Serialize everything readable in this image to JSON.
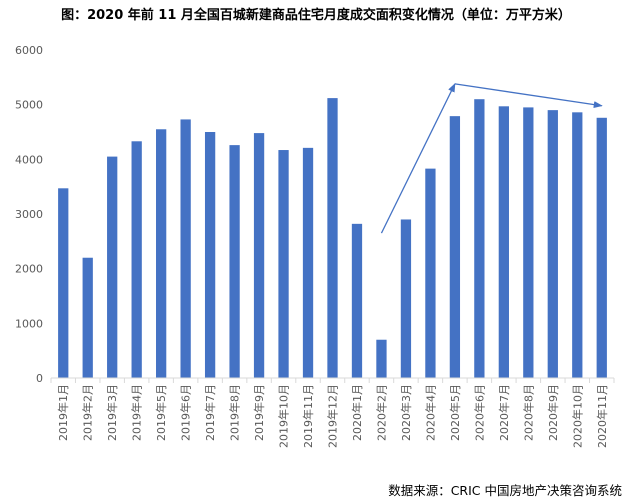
{
  "title": "图：2020 年前 11 月全国百城新建商品住宅月度成交面积变化情况（单位：万平方米）",
  "source": "数据来源：CRIC 中国房地产决策咨询系统",
  "colors": {
    "bar": "#4472C4",
    "axis": "#D9D9D9",
    "tick_text": "#595959",
    "annotation": "#4472C4"
  },
  "chart_data": {
    "type": "bar",
    "title": "图：2020 年前 11 月全国百城新建商品住宅月度成交面积变化情况（单位：万平方米）",
    "xlabel": "",
    "ylabel": "",
    "ylim": [
      0,
      6000
    ],
    "yticks": [
      0,
      1000,
      2000,
      3000,
      4000,
      5000,
      6000
    ],
    "grid": false,
    "legend": "none",
    "categories": [
      "2019年1月",
      "2019年2月",
      "2019年3月",
      "2019年4月",
      "2019年5月",
      "2019年6月",
      "2019年7月",
      "2019年8月",
      "2019年9月",
      "2019年10月",
      "2019年11月",
      "2019年12月",
      "2020年1月",
      "2020年2月",
      "2020年3月",
      "2020年4月",
      "2020年5月",
      "2020年6月",
      "2020年7月",
      "2020年8月",
      "2020年9月",
      "2020年10月",
      "2020年11月"
    ],
    "values": [
      3470,
      2200,
      4050,
      4330,
      4550,
      4730,
      4500,
      4260,
      4480,
      4170,
      4210,
      5120,
      2820,
      700,
      2900,
      3830,
      4790,
      5100,
      4970,
      4950,
      4900,
      4860,
      4760
    ],
    "annotations": [
      {
        "type": "arrow",
        "from": {
          "x": "2020年2月",
          "y": 2650
        },
        "to": {
          "x": "2020年5月",
          "y": 5380
        }
      },
      {
        "type": "arrow",
        "from": {
          "x": "2020年5月",
          "y": 5380
        },
        "to": {
          "x": "2020年11月",
          "y": 4980
        }
      }
    ]
  }
}
